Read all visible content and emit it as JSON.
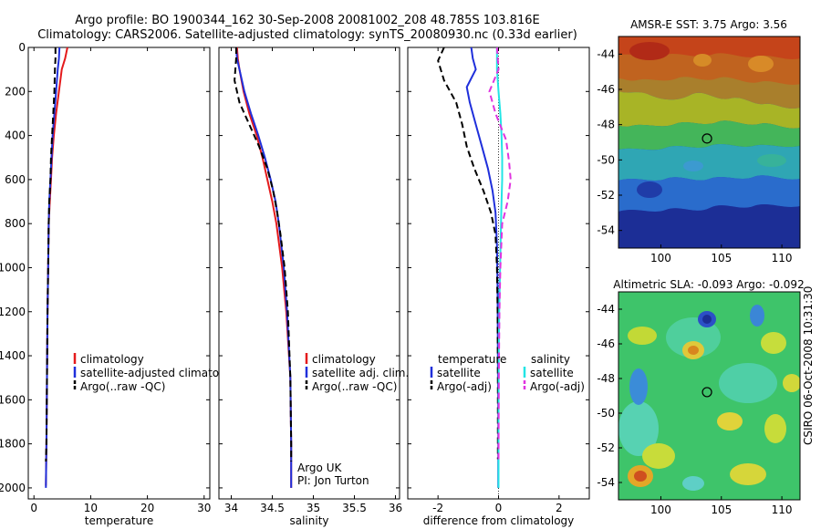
{
  "figure": {
    "title_line1": "Argo profile: BO 1900344_162 30-Sep-2008 20081002_208 48.785S 103.816E",
    "title_line2": "Climatology: CARS2006. Satellite-adjusted climatology: synTS_20080930.nc (0.33d earlier)",
    "footer_note": "CSIRO 06-Oct-2008 10:31:30"
  },
  "colors": {
    "red": "#e41a1c",
    "blue": "#1f2fdb",
    "black": "#000000",
    "cyan": "#22e5e5",
    "magenta": "#e033e0"
  },
  "chart_data": [
    {
      "type": "line",
      "id": "temperature",
      "xlabel": "temperature",
      "ylabel": "",
      "xlim": [
        -1,
        31
      ],
      "ylim": [
        2050,
        0
      ],
      "xticks": [
        0,
        10,
        20,
        30
      ],
      "yticks": [
        0,
        200,
        400,
        600,
        800,
        1000,
        1200,
        1400,
        1600,
        1800,
        2000
      ],
      "grid": false,
      "legend": "center-right",
      "legend_entries": [
        "climatology",
        "satellite-adjusted climatology",
        "Argo(..raw -QC)"
      ],
      "series": [
        {
          "name": "climatology",
          "color": "red",
          "dash": "none",
          "x": [
            5.9,
            5.5,
            4.9,
            4.4,
            3.9,
            3.5,
            3.2,
            3.0,
            2.8,
            2.6,
            2.5,
            2.4,
            2.3,
            2.2,
            2.1
          ],
          "y": [
            0,
            50,
            100,
            200,
            300,
            400,
            500,
            600,
            700,
            800,
            1000,
            1200,
            1500,
            1800,
            1990
          ]
        },
        {
          "name": "satellite-adjusted climatology",
          "color": "blue",
          "dash": "none",
          "x": [
            4.5,
            4.4,
            4.2,
            3.9,
            3.6,
            3.3,
            3.1,
            2.9,
            2.7,
            2.6,
            2.5,
            2.4,
            2.3,
            2.2,
            2.1
          ],
          "y": [
            0,
            50,
            100,
            200,
            300,
            400,
            500,
            600,
            700,
            800,
            1000,
            1200,
            1500,
            1800,
            2000
          ]
        },
        {
          "name": "Argo(..raw -QC)",
          "color": "black",
          "dash": "dash",
          "x": [
            3.8,
            3.8,
            3.7,
            3.6,
            3.4,
            3.2,
            3.0,
            2.9,
            2.7,
            2.6,
            2.5,
            2.4,
            2.3,
            2.2,
            2.1
          ],
          "y": [
            0,
            50,
            100,
            200,
            300,
            400,
            500,
            600,
            700,
            800,
            1000,
            1200,
            1500,
            1800,
            1880
          ]
        }
      ]
    },
    {
      "type": "line",
      "id": "salinity",
      "xlabel": "salinity",
      "ylabel": "",
      "xlim": [
        33.85,
        36.05
      ],
      "ylim": [
        2050,
        0
      ],
      "xticks": [
        34,
        34.5,
        35,
        35.5,
        36
      ],
      "yticks": [
        0,
        200,
        400,
        600,
        800,
        1000,
        1200,
        1400,
        1600,
        1800,
        2000
      ],
      "grid": false,
      "legend": "center-right",
      "legend_entries": [
        "climatology",
        "satellite adj. clim.",
        "Argo(..raw -QC)"
      ],
      "annotation_lines": [
        "Argo UK",
        "PI: Jon Turton"
      ],
      "series": [
        {
          "name": "climatology",
          "color": "red",
          "dash": "none",
          "x": [
            34.07,
            34.08,
            34.1,
            34.15,
            34.22,
            34.31,
            34.38,
            34.44,
            34.5,
            34.55,
            34.62,
            34.67,
            34.72,
            34.73,
            34.73
          ],
          "y": [
            0,
            50,
            100,
            200,
            300,
            400,
            500,
            600,
            700,
            800,
            1000,
            1200,
            1500,
            1800,
            2000
          ]
        },
        {
          "name": "satellite adj. clim.",
          "color": "blue",
          "dash": "none",
          "x": [
            34.06,
            34.07,
            34.1,
            34.16,
            34.24,
            34.33,
            34.41,
            34.48,
            34.54,
            34.58,
            34.64,
            34.68,
            34.72,
            34.73,
            34.73
          ],
          "y": [
            0,
            50,
            100,
            200,
            300,
            400,
            500,
            600,
            700,
            800,
            1000,
            1200,
            1500,
            1800,
            2000
          ]
        },
        {
          "name": "Argo(..raw -QC)",
          "color": "black",
          "dash": "dash",
          "x": [
            34.06,
            34.06,
            34.04,
            34.1,
            34.22,
            34.34,
            34.44,
            34.51,
            34.56,
            34.6,
            34.65,
            34.69,
            34.72,
            34.73,
            34.73
          ],
          "y": [
            0,
            50,
            150,
            250,
            350,
            450,
            550,
            650,
            750,
            850,
            1000,
            1200,
            1500,
            1800,
            1880
          ]
        }
      ]
    },
    {
      "type": "line",
      "id": "difference",
      "xlabel": "difference from climatology",
      "ylabel": "",
      "xlim": [
        -3.0,
        3.0
      ],
      "ylim": [
        2050,
        0
      ],
      "xticks": [
        -2,
        0,
        2
      ],
      "yticks": [
        0,
        200,
        400,
        600,
        800,
        1000,
        1200,
        1400,
        1600,
        1800,
        2000
      ],
      "grid": false,
      "zero_line": true,
      "legend": "center",
      "legend_temperature": {
        "header": "temperature",
        "entries": [
          "satellite",
          "Argo(-adj)"
        ]
      },
      "legend_salinity": {
        "header": "salinity",
        "entries": [
          "satellite",
          "Argo(-adj)"
        ]
      },
      "series": [
        {
          "name": "temperature satellite",
          "color": "blue",
          "dash": "none",
          "x": [
            -0.9,
            -0.85,
            -0.75,
            -1.05,
            -0.95,
            -0.75,
            -0.55,
            -0.35,
            -0.2,
            -0.1,
            -0.05,
            -0.03,
            -0.02,
            -0.01,
            -0.01
          ],
          "y": [
            0,
            50,
            100,
            180,
            250,
            350,
            450,
            550,
            650,
            750,
            900,
            1100,
            1400,
            1700,
            2000
          ]
        },
        {
          "name": "temperature Argo(-adj)",
          "color": "black",
          "dash": "dash",
          "x": [
            -1.8,
            -2.0,
            -1.8,
            -1.4,
            -1.2,
            -1.05,
            -0.8,
            -0.5,
            -0.25,
            -0.1,
            -0.05,
            -0.03,
            -0.02,
            -0.02
          ],
          "y": [
            0,
            60,
            150,
            250,
            350,
            450,
            550,
            650,
            750,
            850,
            1000,
            1200,
            1500,
            1870
          ]
        },
        {
          "name": "salinity satellite",
          "color": "cyan",
          "dash": "none",
          "x": [
            -0.05,
            -0.05,
            0.0,
            0.06,
            0.1,
            0.12,
            0.12,
            0.1,
            0.08,
            0.05,
            0.02,
            0.01,
            0.0,
            0.0
          ],
          "y": [
            0,
            100,
            200,
            300,
            400,
            500,
            600,
            700,
            800,
            1000,
            1200,
            1400,
            1700,
            2000
          ]
        },
        {
          "name": "salinity Argo(-adj)",
          "color": "magenta",
          "dash": "dash",
          "x": [
            -0.05,
            0.0,
            -0.3,
            -0.1,
            0.25,
            0.35,
            0.4,
            0.3,
            0.12,
            0.06,
            0.03,
            0.01,
            0.0
          ],
          "y": [
            0,
            100,
            200,
            300,
            420,
            520,
            600,
            700,
            800,
            1000,
            1200,
            1500,
            1870
          ]
        }
      ]
    },
    {
      "type": "heatmap",
      "id": "sst_map",
      "title": "AMSR-E SST: 3.75 Argo: 3.56",
      "xlim": [
        96.5,
        111.5
      ],
      "ylim": [
        -55,
        -43
      ],
      "xticks": [
        100,
        105,
        110
      ],
      "yticks": [
        -44,
        -46,
        -48,
        -50,
        -52,
        -54
      ],
      "marker": {
        "lon": 103.816,
        "lat": -48.785
      }
    },
    {
      "type": "heatmap",
      "id": "sla_map",
      "title": "Altimetric SLA: -0.093 Argo: -0.092",
      "xlim": [
        96.5,
        111.5
      ],
      "ylim": [
        -55,
        -43
      ],
      "xticks": [
        100,
        105,
        110
      ],
      "yticks": [
        -44,
        -46,
        -48,
        -50,
        -52,
        -54
      ],
      "marker": {
        "lon": 103.816,
        "lat": -48.785
      }
    }
  ]
}
